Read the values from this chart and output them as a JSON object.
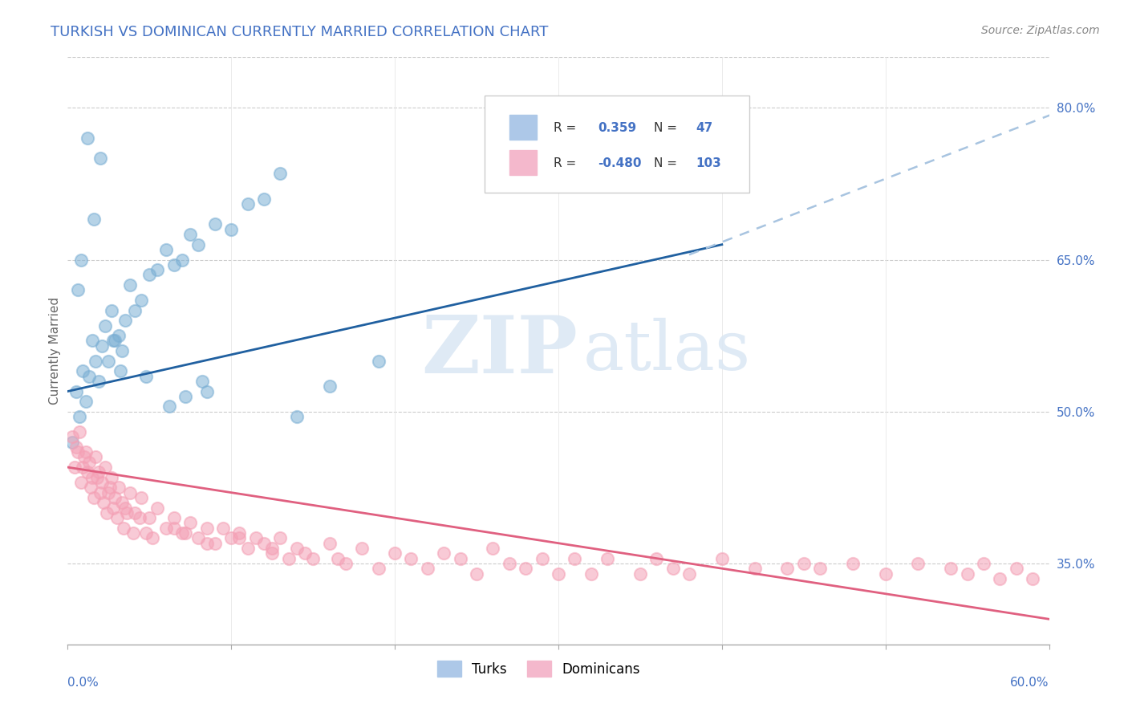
{
  "title": "TURKISH VS DOMINICAN CURRENTLY MARRIED CORRELATION CHART",
  "source": "Source: ZipAtlas.com",
  "ylabel": "Currently Married",
  "right_yticks": [
    35.0,
    50.0,
    65.0,
    80.0
  ],
  "xmin": 0.0,
  "xmax": 60.0,
  "ymin": 27.0,
  "ymax": 85.0,
  "turks_R": 0.359,
  "turks_N": 47,
  "dominicans_R": -0.48,
  "dominicans_N": 103,
  "turk_color": "#7bafd4",
  "dominican_color": "#f4a0b5",
  "turk_line_color": "#2060a0",
  "dominican_line_color": "#e06080",
  "trend_dashed_color": "#a8c4e0",
  "watermark_zip": "ZIP",
  "watermark_atlas": "atlas",
  "turks_x": [
    0.3,
    0.5,
    0.7,
    0.9,
    1.1,
    1.3,
    1.5,
    1.7,
    1.9,
    2.1,
    2.3,
    2.5,
    2.7,
    2.9,
    3.1,
    3.3,
    3.5,
    3.8,
    4.1,
    4.5,
    5.0,
    5.5,
    6.0,
    6.5,
    7.0,
    7.5,
    8.0,
    9.0,
    10.0,
    11.0,
    12.0,
    13.0,
    2.0,
    1.2,
    0.8,
    1.6,
    0.6,
    2.8,
    3.2,
    4.8,
    6.2,
    8.5,
    14.0,
    16.0,
    19.0,
    8.2,
    7.2
  ],
  "turks_y": [
    47.0,
    52.0,
    49.5,
    54.0,
    51.0,
    53.5,
    57.0,
    55.0,
    53.0,
    56.5,
    58.5,
    55.0,
    60.0,
    57.0,
    57.5,
    56.0,
    59.0,
    62.5,
    60.0,
    61.0,
    63.5,
    64.0,
    66.0,
    64.5,
    65.0,
    67.5,
    66.5,
    68.5,
    68.0,
    70.5,
    71.0,
    73.5,
    75.0,
    77.0,
    65.0,
    69.0,
    62.0,
    57.0,
    54.0,
    53.5,
    50.5,
    52.0,
    49.5,
    52.5,
    55.0,
    53.0,
    51.5
  ],
  "doms_x": [
    0.3,
    0.5,
    0.7,
    0.9,
    1.1,
    1.3,
    1.5,
    1.7,
    1.9,
    2.1,
    2.3,
    2.5,
    2.7,
    2.9,
    3.1,
    3.3,
    3.5,
    3.8,
    4.1,
    4.5,
    5.0,
    5.5,
    6.0,
    6.5,
    7.0,
    7.5,
    8.0,
    8.5,
    9.0,
    9.5,
    10.0,
    10.5,
    11.0,
    11.5,
    12.0,
    12.5,
    13.0,
    13.5,
    14.0,
    15.0,
    16.0,
    17.0,
    18.0,
    19.0,
    20.0,
    21.0,
    22.0,
    23.0,
    24.0,
    25.0,
    26.0,
    27.0,
    28.0,
    29.0,
    30.0,
    31.0,
    32.0,
    33.0,
    35.0,
    36.0,
    37.0,
    38.0,
    40.0,
    42.0,
    44.0,
    45.0,
    46.0,
    48.0,
    50.0,
    52.0,
    54.0,
    55.0,
    56.0,
    57.0,
    58.0,
    59.0,
    0.4,
    0.6,
    0.8,
    1.0,
    1.2,
    1.4,
    1.6,
    1.8,
    2.0,
    2.2,
    2.4,
    2.6,
    2.8,
    3.0,
    3.4,
    3.6,
    4.0,
    4.4,
    4.8,
    5.2,
    6.5,
    7.2,
    8.5,
    10.5,
    12.5,
    14.5,
    16.5
  ],
  "doms_y": [
    47.5,
    46.5,
    48.0,
    44.5,
    46.0,
    45.0,
    43.5,
    45.5,
    44.0,
    43.0,
    44.5,
    42.0,
    43.5,
    41.5,
    42.5,
    41.0,
    40.5,
    42.0,
    40.0,
    41.5,
    39.5,
    40.5,
    38.5,
    39.5,
    38.0,
    39.0,
    37.5,
    38.5,
    37.0,
    38.5,
    37.5,
    38.0,
    36.5,
    37.5,
    37.0,
    36.0,
    37.5,
    35.5,
    36.5,
    35.5,
    37.0,
    35.0,
    36.5,
    34.5,
    36.0,
    35.5,
    34.5,
    36.0,
    35.5,
    34.0,
    36.5,
    35.0,
    34.5,
    35.5,
    34.0,
    35.5,
    34.0,
    35.5,
    34.0,
    35.5,
    34.5,
    34.0,
    35.5,
    34.5,
    34.5,
    35.0,
    34.5,
    35.0,
    34.0,
    35.0,
    34.5,
    34.0,
    35.0,
    33.5,
    34.5,
    33.5,
    44.5,
    46.0,
    43.0,
    45.5,
    44.0,
    42.5,
    41.5,
    43.5,
    42.0,
    41.0,
    40.0,
    42.5,
    40.5,
    39.5,
    38.5,
    40.0,
    38.0,
    39.5,
    38.0,
    37.5,
    38.5,
    38.0,
    37.0,
    37.5,
    36.5,
    36.0,
    35.5
  ],
  "turk_trendline": [
    0.0,
    40.0,
    52.0,
    66.5
  ],
  "turk_dashed": [
    38.0,
    62.0,
    65.5,
    80.5
  ],
  "dom_trendline": [
    0.0,
    60.0,
    44.5,
    29.5
  ],
  "title_color": "#4472c4",
  "source_color": "#888888",
  "axis_color": "#4472c4",
  "ylabel_color": "#666666"
}
